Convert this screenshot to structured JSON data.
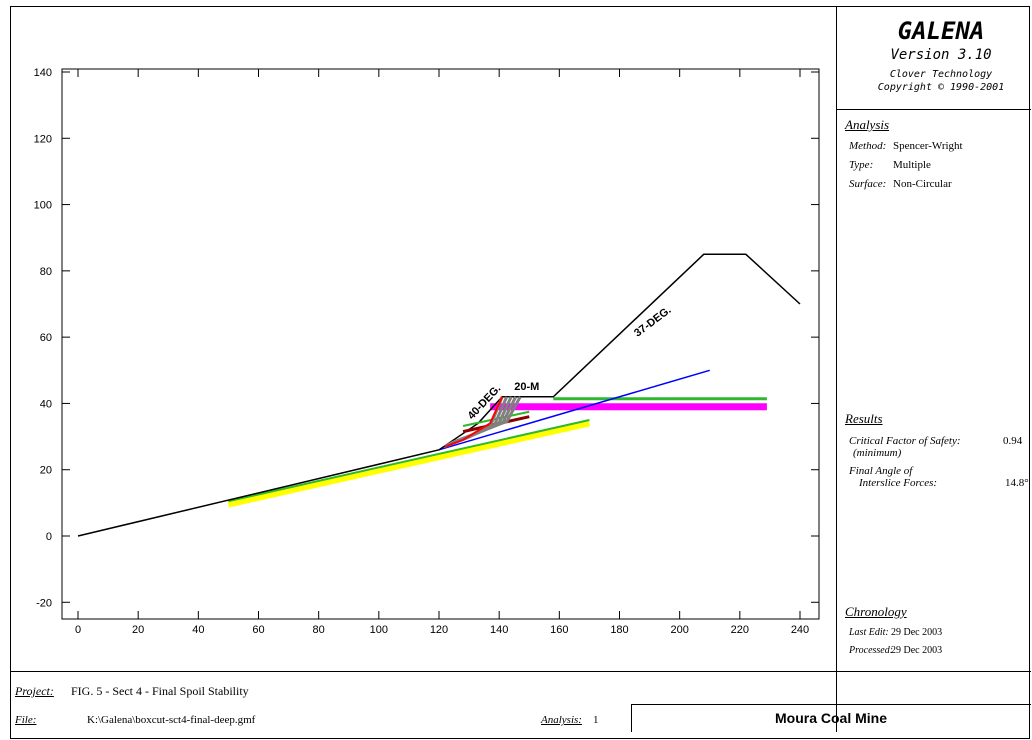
{
  "header": {
    "app_name": "GALENA",
    "version": "Version 3.10",
    "company": "Clover Technology",
    "copyright": "Copyright © 1990-2001"
  },
  "analysis": {
    "heading": "Analysis",
    "method_label": "Method:",
    "method_value": "Spencer-Wright",
    "type_label": "Type:",
    "type_value": "Multiple",
    "surface_label": "Surface:",
    "surface_value": "Non-Circular"
  },
  "results": {
    "heading": "Results",
    "fos_label": "Critical Factor of Safety:",
    "fos_sub": "(minimum)",
    "fos_value": "0.94",
    "angle_label_1": "Final Angle of",
    "angle_label_2": "Interslice Forces:",
    "angle_value": "14.8°"
  },
  "chronology": {
    "heading": "Chronology",
    "last_edit_label": "Last Edit:",
    "last_edit_value": "29 Dec 2003",
    "processed_label": "Processed:",
    "processed_value": "29 Dec 2003"
  },
  "footer": {
    "project_label": "Project:",
    "project_value": "FIG. 5 - Sect 4 - Final Spoil Stability",
    "file_label": "File:",
    "file_value": "K:\\Galena\\boxcut-sct4-final-deep.gmf",
    "analysis_label": "Analysis:",
    "analysis_value": "1",
    "client": "Moura Coal Mine"
  },
  "colors": {
    "ground": "#000000",
    "green_layer": "#2db82d",
    "yellow_layer": "#ffff00",
    "magenta_layer": "#ff00ff",
    "blue_line": "#0000ff",
    "critical_surface": "#ff0000",
    "trial_surfaces": "#808080"
  },
  "chart_data": {
    "type": "diagram",
    "xlim": [
      0,
      240
    ],
    "ylim": [
      -20,
      140
    ],
    "x_ticks": [
      "0",
      "20",
      "40",
      "60",
      "80",
      "100",
      "120",
      "140",
      "160",
      "180",
      "200",
      "220",
      "240"
    ],
    "y_ticks": [
      "-20",
      "0",
      "20",
      "40",
      "60",
      "80",
      "100",
      "120",
      "140"
    ],
    "annotations": {
      "slope_37": "37-DEG.",
      "slope_40": "40-DEG.",
      "bench_20": "20-M"
    },
    "ground_profile": [
      [
        0,
        0
      ],
      [
        120,
        26
      ],
      [
        133,
        34
      ],
      [
        141,
        42
      ],
      [
        158,
        42
      ],
      [
        208,
        85
      ],
      [
        222,
        85
      ],
      [
        240,
        70
      ]
    ],
    "blue_line": [
      [
        120,
        26
      ],
      [
        210,
        50
      ]
    ],
    "yellow_band": [
      [
        50,
        9.5
      ],
      [
        170,
        34
      ]
    ],
    "green_lower": [
      [
        50,
        10.5
      ],
      [
        170,
        35
      ]
    ],
    "magenta_band": [
      [
        137,
        39
      ],
      [
        229,
        39
      ]
    ],
    "green_upper": [
      [
        158,
        42
      ],
      [
        229,
        42
      ]
    ],
    "critical_surface": [
      [
        122,
        27
      ],
      [
        128,
        29
      ],
      [
        137,
        34
      ],
      [
        141,
        42
      ]
    ],
    "trial_surface_tops": [
      141,
      142.5,
      144,
      145.5,
      147
    ]
  }
}
